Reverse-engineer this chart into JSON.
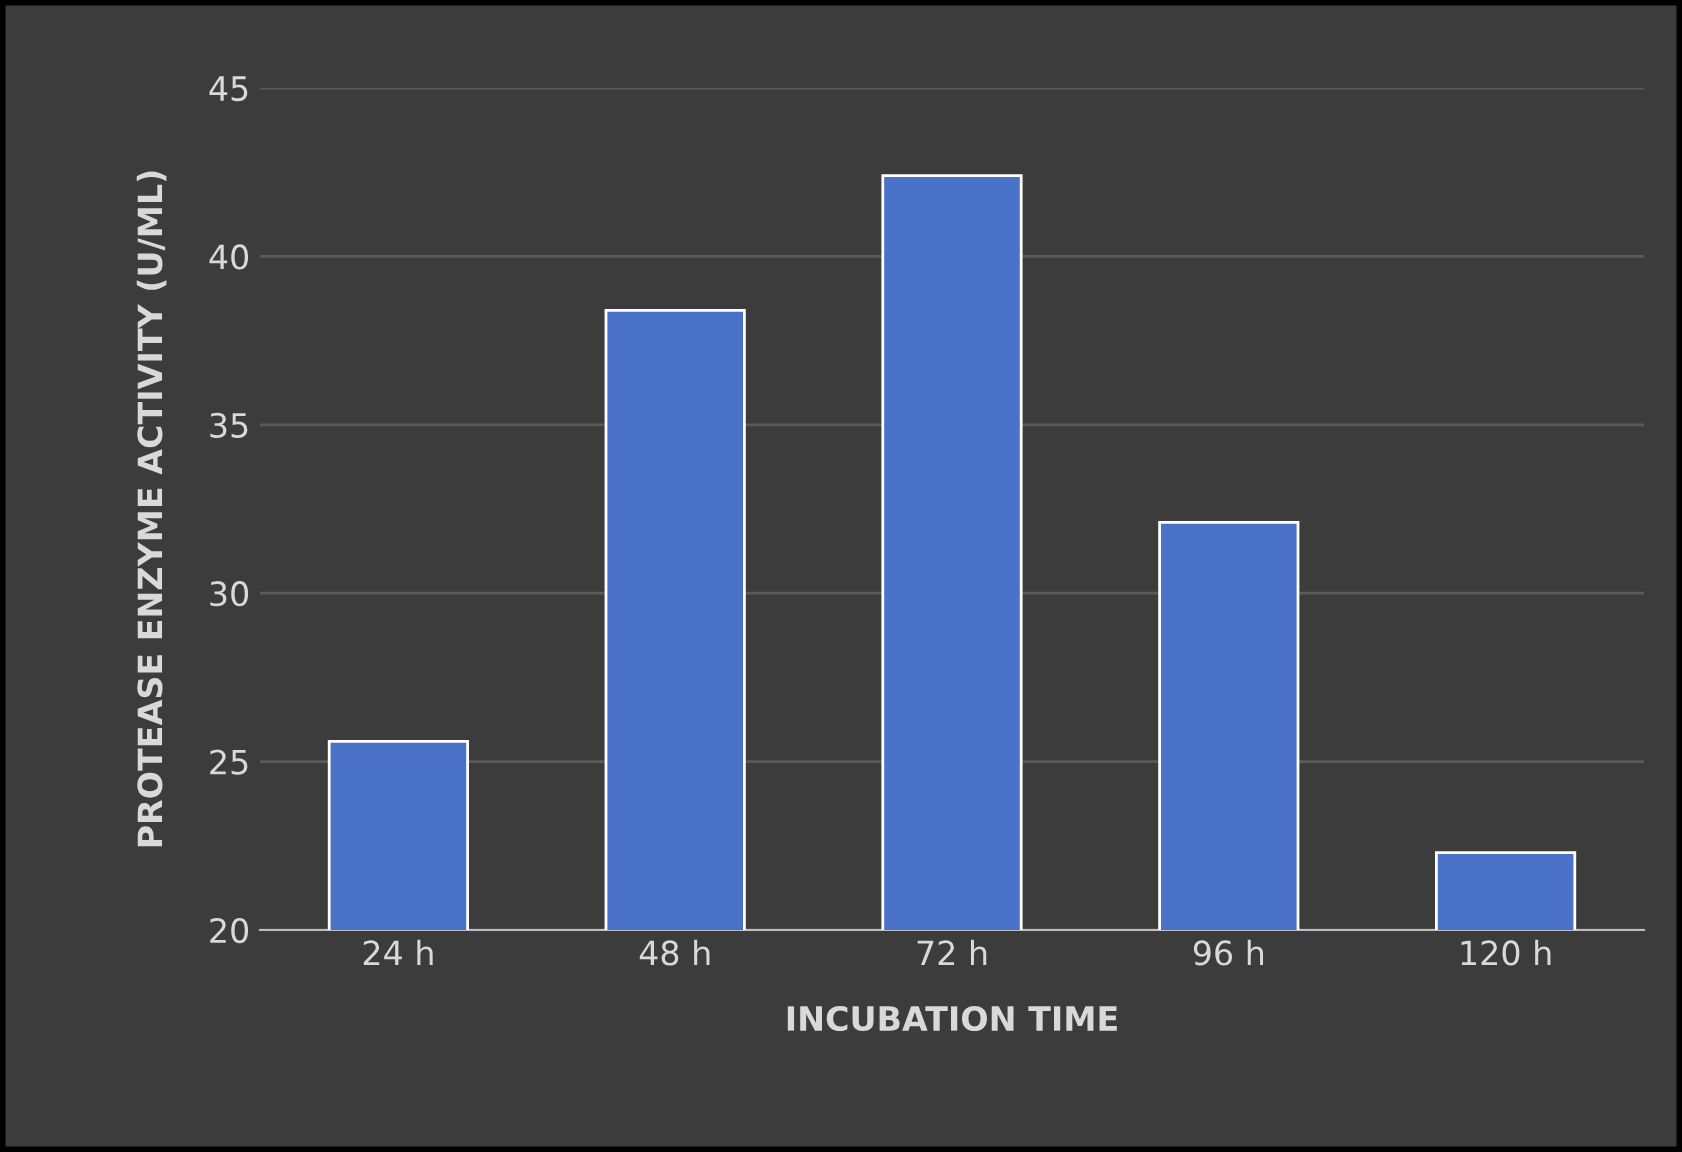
{
  "chart_data": {
    "type": "bar",
    "xlabel": "INCUBATION TIME",
    "ylabel": "PROTEASE ENZYME ACTIVITY (U/ML)",
    "categories": [
      "24 h",
      "48 h",
      "72 h",
      "96 h",
      "120 h"
    ],
    "values": [
      25.6,
      38.4,
      42.4,
      32.1,
      22.3
    ],
    "color": "#4a72c8",
    "ylim": [
      20,
      45
    ],
    "yticks": [
      20,
      25,
      30,
      35,
      40,
      45
    ],
    "grid": "y"
  }
}
